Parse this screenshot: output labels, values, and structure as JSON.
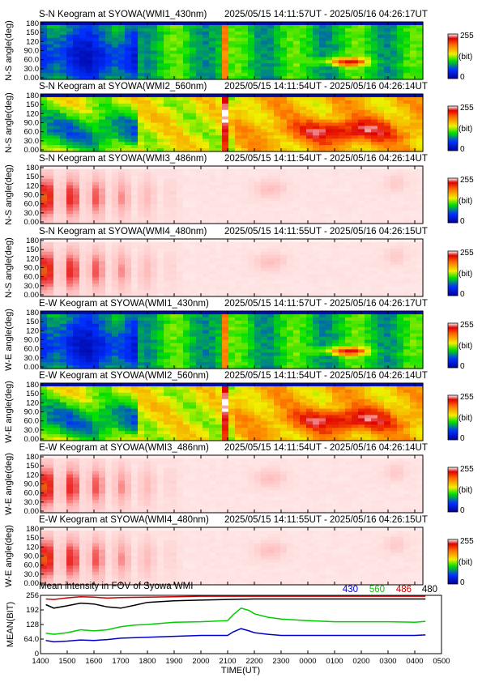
{
  "chart_data": {
    "type": "heatmap",
    "x_tick_labels": [
      "1400",
      "1500",
      "1600",
      "1700",
      "1800",
      "1900",
      "2000",
      "2100",
      "2200",
      "2300",
      "0000",
      "0100",
      "0200",
      "0300",
      "0400",
      "0500"
    ],
    "x_range_hours": [
      14,
      29
    ],
    "xlabel": "TIME(UT)",
    "colorbar": {
      "max_label": "255",
      "unit_label": "(bit)",
      "min_label": "0",
      "range": [
        0,
        255
      ]
    },
    "panels": [
      {
        "title": "S-N Keogram at SYOWA(WMI1_430nm)",
        "time_range": "2025/05/15 14:11:57UT - 2025/05/16 04:26:17UT",
        "ylabel": "N-S angle(deg)",
        "y_ticks": [
          "180",
          "150",
          "120",
          "90.0",
          "60.0",
          "30.0",
          "0.00"
        ],
        "colormap": "rainbow",
        "profile": "g430"
      },
      {
        "title": "S-N Keogram at SYOWA(WMI2_560nm)",
        "time_range": "2025/05/15 14:11:54UT - 2025/05/16 04:26:14UT",
        "ylabel": "N-S angle(deg)",
        "y_ticks": [
          "180",
          "150",
          "120",
          "90.0",
          "60.0",
          "30.0",
          "0.00"
        ],
        "colormap": "rainbow",
        "profile": "g560"
      },
      {
        "title": "S-N Keogram at SYOWA(WMI3_486nm)",
        "time_range": "2025/05/15 14:11:54UT - 2025/05/16 04:26:14UT",
        "ylabel": "N-S angle(deg)",
        "y_ticks": [
          "180",
          "150",
          "120",
          "90.0",
          "60.0",
          "30.0",
          "0.00"
        ],
        "colormap": "red-white",
        "profile": "red"
      },
      {
        "title": "S-N Keogram at SYOWA(WMI4_480nm)",
        "time_range": "2025/05/15 14:11:55UT - 2025/05/16 04:26:15UT",
        "ylabel": "N-S angle(deg)",
        "y_ticks": [
          "180",
          "150",
          "120",
          "90.0",
          "60.0",
          "30.0",
          "0.00"
        ],
        "colormap": "red-white",
        "profile": "red"
      },
      {
        "title": "E-W Keogram at SYOWA(WMI1_430nm)",
        "time_range": "2025/05/15 14:11:57UT - 2025/05/16 04:26:17UT",
        "ylabel": "W-E angle(deg)",
        "y_ticks": [
          "180",
          "150",
          "120",
          "90.0",
          "60.0",
          "30.0",
          "0.00"
        ],
        "colormap": "rainbow",
        "profile": "g430"
      },
      {
        "title": "E-W Keogram at SYOWA(WMI2_560nm)",
        "time_range": "2025/05/15 14:11:54UT - 2025/05/16 04:26:14UT",
        "ylabel": "W-E angle(deg)",
        "y_ticks": [
          "180",
          "150",
          "120",
          "90.0",
          "60.0",
          "30.0",
          "0.00"
        ],
        "colormap": "rainbow",
        "profile": "g560"
      },
      {
        "title": "E-W Keogram at SYOWA(WMI3_486nm)",
        "time_range": "2025/05/15 14:11:54UT - 2025/05/16 04:26:14UT",
        "ylabel": "W-E angle(deg)",
        "y_ticks": [
          "180",
          "150",
          "120",
          "90.0",
          "60.0",
          "30.0",
          "0.00"
        ],
        "colormap": "red-white",
        "profile": "red"
      },
      {
        "title": "E-W Keogram at SYOWA(WMI4_480nm)",
        "time_range": "2025/05/15 14:11:55UT - 2025/05/16 04:26:15UT",
        "ylabel": "W-E angle(deg)",
        "y_ticks": [
          "180",
          "150",
          "120",
          "90.0",
          "60.0",
          "30.0",
          "0.00"
        ],
        "colormap": "red-white",
        "profile": "red"
      }
    ],
    "mean_panel": {
      "title": "Mean intensity in FOV of Syowa WMI",
      "type": "line",
      "ylabel": "MEAN(BIT)",
      "y_ticks": [
        "256",
        "192",
        "128",
        "64.0",
        "0"
      ],
      "ylim": [
        0,
        256
      ],
      "series": [
        {
          "name": "430",
          "color": "#0000cc",
          "x": [
            14.2,
            14.5,
            15.0,
            15.5,
            16.0,
            16.5,
            17.0,
            18.0,
            19.0,
            20.0,
            21.0,
            21.2,
            21.5,
            21.8,
            22.0,
            22.5,
            23.0,
            24.0,
            25.0,
            26.0,
            27.0,
            28.0,
            28.4
          ],
          "y": [
            58,
            52,
            55,
            60,
            58,
            62,
            68,
            72,
            76,
            80,
            80,
            95,
            110,
            100,
            92,
            85,
            80,
            80,
            80,
            80,
            80,
            80,
            82
          ]
        },
        {
          "name": "560",
          "color": "#00cc00",
          "x": [
            14.2,
            14.5,
            15.0,
            15.5,
            16.0,
            16.5,
            17.0,
            17.5,
            18.0,
            19.0,
            20.0,
            21.0,
            21.2,
            21.5,
            21.8,
            22.0,
            22.5,
            23.0,
            24.0,
            25.0,
            26.0,
            27.0,
            28.0,
            28.4
          ],
          "y": [
            90,
            85,
            92,
            105,
            100,
            105,
            118,
            125,
            128,
            138,
            140,
            145,
            170,
            200,
            190,
            175,
            160,
            152,
            145,
            140,
            140,
            140,
            138,
            142
          ]
        },
        {
          "name": "486",
          "color": "#cc0000",
          "x": [
            14.2,
            14.5,
            15.0,
            15.5,
            16.0,
            16.5,
            17.0,
            18.0,
            19.0,
            20.0,
            21.0,
            22.0,
            23.0,
            24.0,
            25.0,
            26.0,
            27.0,
            28.0,
            28.4
          ],
          "y": [
            240,
            238,
            245,
            250,
            248,
            244,
            246,
            248,
            250,
            252,
            252,
            252,
            252,
            252,
            252,
            252,
            252,
            252,
            252
          ]
        },
        {
          "name": "480",
          "color": "#000000",
          "x": [
            14.2,
            14.5,
            15.0,
            15.5,
            16.0,
            16.5,
            17.0,
            17.5,
            18.0,
            19.0,
            20.0,
            21.0,
            22.0,
            23.0,
            24.0,
            25.0,
            26.0,
            27.0,
            28.0,
            28.4
          ],
          "y": [
            215,
            200,
            210,
            222,
            218,
            205,
            200,
            212,
            225,
            232,
            235,
            238,
            240,
            240,
            240,
            240,
            240,
            240,
            240,
            240
          ]
        }
      ]
    }
  }
}
